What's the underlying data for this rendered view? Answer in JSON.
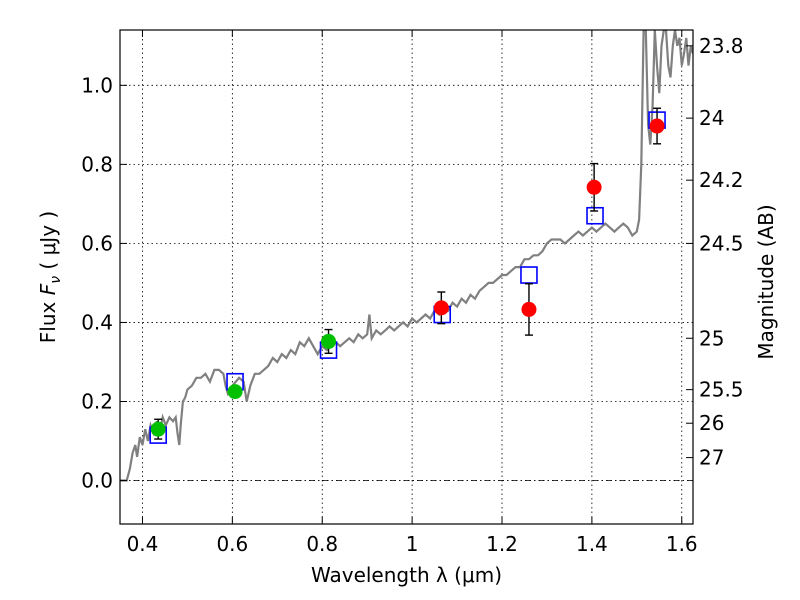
{
  "chart_data": {
    "type": "scatter",
    "xlabel": "Wavelength  λ (μm)",
    "ylabel": "Flux  F_ν  ( μJy )",
    "ylabel_right": "Magnitude (AB)",
    "xlim": [
      0.35,
      1.625
    ],
    "ylim": [
      -0.11,
      1.14
    ],
    "x_ticks": [
      0.4,
      0.6,
      0.8,
      1.0,
      1.2,
      1.4,
      1.6
    ],
    "x_tick_labels": [
      "0.4",
      "0.6",
      "0.8",
      "1",
      "1.2",
      "1.4",
      "1.6"
    ],
    "y_ticks": [
      0.0,
      0.2,
      0.4,
      0.6,
      0.8,
      1.0
    ],
    "y_tick_labels": [
      "0.0",
      "0.2",
      "0.4",
      "0.6",
      "0.8",
      "1.0"
    ],
    "right_ticks": [
      {
        "flux": 1.1,
        "label": "23.8"
      },
      {
        "flux": 0.917,
        "label": "24"
      },
      {
        "flux": 0.76,
        "label": "24.2"
      },
      {
        "flux": 0.6,
        "label": "24.5"
      },
      {
        "flux": 0.36,
        "label": "25"
      },
      {
        "flux": 0.23,
        "label": "25.5"
      },
      {
        "flux": 0.145,
        "label": "26"
      },
      {
        "flux": 0.058,
        "label": "27"
      }
    ],
    "grid": true,
    "dashdot_zero_line": true,
    "model_spectrum": {
      "color": "#808080",
      "points": [
        [
          0.35,
          0.0
        ],
        [
          0.365,
          0.0
        ],
        [
          0.372,
          0.03
        ],
        [
          0.378,
          0.07
        ],
        [
          0.384,
          0.09
        ],
        [
          0.388,
          0.06
        ],
        [
          0.394,
          0.11
        ],
        [
          0.4,
          0.09
        ],
        [
          0.406,
          0.13
        ],
        [
          0.412,
          0.1
        ],
        [
          0.418,
          0.14
        ],
        [
          0.425,
          0.12
        ],
        [
          0.432,
          0.15
        ],
        [
          0.438,
          0.12
        ],
        [
          0.445,
          0.16
        ],
        [
          0.452,
          0.14
        ],
        [
          0.46,
          0.16
        ],
        [
          0.468,
          0.15
        ],
        [
          0.474,
          0.16
        ],
        [
          0.478,
          0.12
        ],
        [
          0.482,
          0.09
        ],
        [
          0.485,
          0.14
        ],
        [
          0.49,
          0.2
        ],
        [
          0.495,
          0.21
        ],
        [
          0.5,
          0.23
        ],
        [
          0.51,
          0.24
        ],
        [
          0.52,
          0.26
        ],
        [
          0.53,
          0.26
        ],
        [
          0.54,
          0.27
        ],
        [
          0.55,
          0.25
        ],
        [
          0.56,
          0.28
        ],
        [
          0.57,
          0.28
        ],
        [
          0.58,
          0.27
        ],
        [
          0.585,
          0.24
        ],
        [
          0.59,
          0.22
        ],
        [
          0.6,
          0.24
        ],
        [
          0.615,
          0.26
        ],
        [
          0.625,
          0.25
        ],
        [
          0.632,
          0.2
        ],
        [
          0.64,
          0.24
        ],
        [
          0.65,
          0.27
        ],
        [
          0.66,
          0.27
        ],
        [
          0.67,
          0.28
        ],
        [
          0.68,
          0.29
        ],
        [
          0.69,
          0.31
        ],
        [
          0.7,
          0.3
        ],
        [
          0.71,
          0.32
        ],
        [
          0.72,
          0.31
        ],
        [
          0.73,
          0.33
        ],
        [
          0.74,
          0.32
        ],
        [
          0.75,
          0.35
        ],
        [
          0.76,
          0.34
        ],
        [
          0.77,
          0.36
        ],
        [
          0.78,
          0.34
        ],
        [
          0.79,
          0.32
        ],
        [
          0.8,
          0.34
        ],
        [
          0.81,
          0.33
        ],
        [
          0.82,
          0.34
        ],
        [
          0.83,
          0.35
        ],
        [
          0.84,
          0.34
        ],
        [
          0.85,
          0.35
        ],
        [
          0.86,
          0.36
        ],
        [
          0.87,
          0.35
        ],
        [
          0.88,
          0.37
        ],
        [
          0.89,
          0.36
        ],
        [
          0.9,
          0.37
        ],
        [
          0.905,
          0.42
        ],
        [
          0.91,
          0.36
        ],
        [
          0.92,
          0.38
        ],
        [
          0.93,
          0.37
        ],
        [
          0.94,
          0.38
        ],
        [
          0.95,
          0.39
        ],
        [
          0.96,
          0.38
        ],
        [
          0.97,
          0.39
        ],
        [
          0.98,
          0.4
        ],
        [
          0.99,
          0.39
        ],
        [
          1.0,
          0.41
        ],
        [
          1.01,
          0.4
        ],
        [
          1.02,
          0.41
        ],
        [
          1.03,
          0.42
        ],
        [
          1.04,
          0.41
        ],
        [
          1.05,
          0.43
        ],
        [
          1.06,
          0.42
        ],
        [
          1.07,
          0.44
        ],
        [
          1.08,
          0.43
        ],
        [
          1.09,
          0.45
        ],
        [
          1.1,
          0.44
        ],
        [
          1.11,
          0.46
        ],
        [
          1.12,
          0.45
        ],
        [
          1.13,
          0.47
        ],
        [
          1.14,
          0.46
        ],
        [
          1.15,
          0.48
        ],
        [
          1.16,
          0.49
        ],
        [
          1.17,
          0.5
        ],
        [
          1.18,
          0.5
        ],
        [
          1.19,
          0.51
        ],
        [
          1.2,
          0.52
        ],
        [
          1.21,
          0.52
        ],
        [
          1.22,
          0.53
        ],
        [
          1.23,
          0.54
        ],
        [
          1.24,
          0.54
        ],
        [
          1.25,
          0.56
        ],
        [
          1.26,
          0.56
        ],
        [
          1.27,
          0.57
        ],
        [
          1.28,
          0.57
        ],
        [
          1.29,
          0.58
        ],
        [
          1.3,
          0.6
        ],
        [
          1.31,
          0.61
        ],
        [
          1.32,
          0.61
        ],
        [
          1.33,
          0.61
        ],
        [
          1.34,
          0.6
        ],
        [
          1.35,
          0.61
        ],
        [
          1.36,
          0.62
        ],
        [
          1.37,
          0.63
        ],
        [
          1.38,
          0.62
        ],
        [
          1.39,
          0.63
        ],
        [
          1.4,
          0.64
        ],
        [
          1.41,
          0.63
        ],
        [
          1.42,
          0.64
        ],
        [
          1.43,
          0.65
        ],
        [
          1.44,
          0.64
        ],
        [
          1.45,
          0.63
        ],
        [
          1.46,
          0.64
        ],
        [
          1.47,
          0.65
        ],
        [
          1.48,
          0.64
        ],
        [
          1.49,
          0.62
        ],
        [
          1.5,
          0.63
        ],
        [
          1.505,
          0.66
        ],
        [
          1.51,
          0.8
        ],
        [
          1.515,
          1.14
        ],
        [
          1.52,
          1.14
        ],
        [
          1.525,
          0.9
        ],
        [
          1.53,
          0.85
        ],
        [
          1.535,
          0.95
        ],
        [
          1.54,
          1.14
        ],
        [
          1.545,
          1.05
        ],
        [
          1.55,
          0.98
        ],
        [
          1.555,
          1.1
        ],
        [
          1.56,
          1.14
        ],
        [
          1.565,
          1.14
        ],
        [
          1.57,
          1.05
        ],
        [
          1.575,
          1.02
        ],
        [
          1.58,
          1.1
        ],
        [
          1.585,
          1.14
        ],
        [
          1.59,
          1.1
        ],
        [
          1.595,
          1.12
        ],
        [
          1.6,
          1.05
        ],
        [
          1.605,
          1.08
        ],
        [
          1.61,
          1.12
        ],
        [
          1.615,
          1.05
        ],
        [
          1.62,
          1.1
        ],
        [
          1.625,
          1.08
        ]
      ]
    },
    "series": [
      {
        "marker": "circle",
        "color": "#00c000",
        "points": [
          {
            "x": 0.435,
            "y": 0.13,
            "err": 0.025
          },
          {
            "x": 0.606,
            "y": 0.225,
            "err": 0.01
          },
          {
            "x": 0.814,
            "y": 0.352,
            "err": 0.03
          }
        ]
      },
      {
        "marker": "circle",
        "color": "#ff0000",
        "points": [
          {
            "x": 1.065,
            "y": 0.437,
            "err": 0.04
          },
          {
            "x": 1.26,
            "y": 0.433,
            "err": 0.065
          },
          {
            "x": 1.405,
            "y": 0.742,
            "err": 0.06
          },
          {
            "x": 1.545,
            "y": 0.897,
            "err": 0.045
          }
        ]
      },
      {
        "marker": "square",
        "color": "#0000ff",
        "points": [
          {
            "x": 0.435,
            "y": 0.115
          },
          {
            "x": 0.606,
            "y": 0.25
          },
          {
            "x": 0.814,
            "y": 0.33
          },
          {
            "x": 1.067,
            "y": 0.42
          },
          {
            "x": 1.26,
            "y": 0.52
          },
          {
            "x": 1.407,
            "y": 0.67
          },
          {
            "x": 1.545,
            "y": 0.912
          }
        ]
      }
    ]
  }
}
